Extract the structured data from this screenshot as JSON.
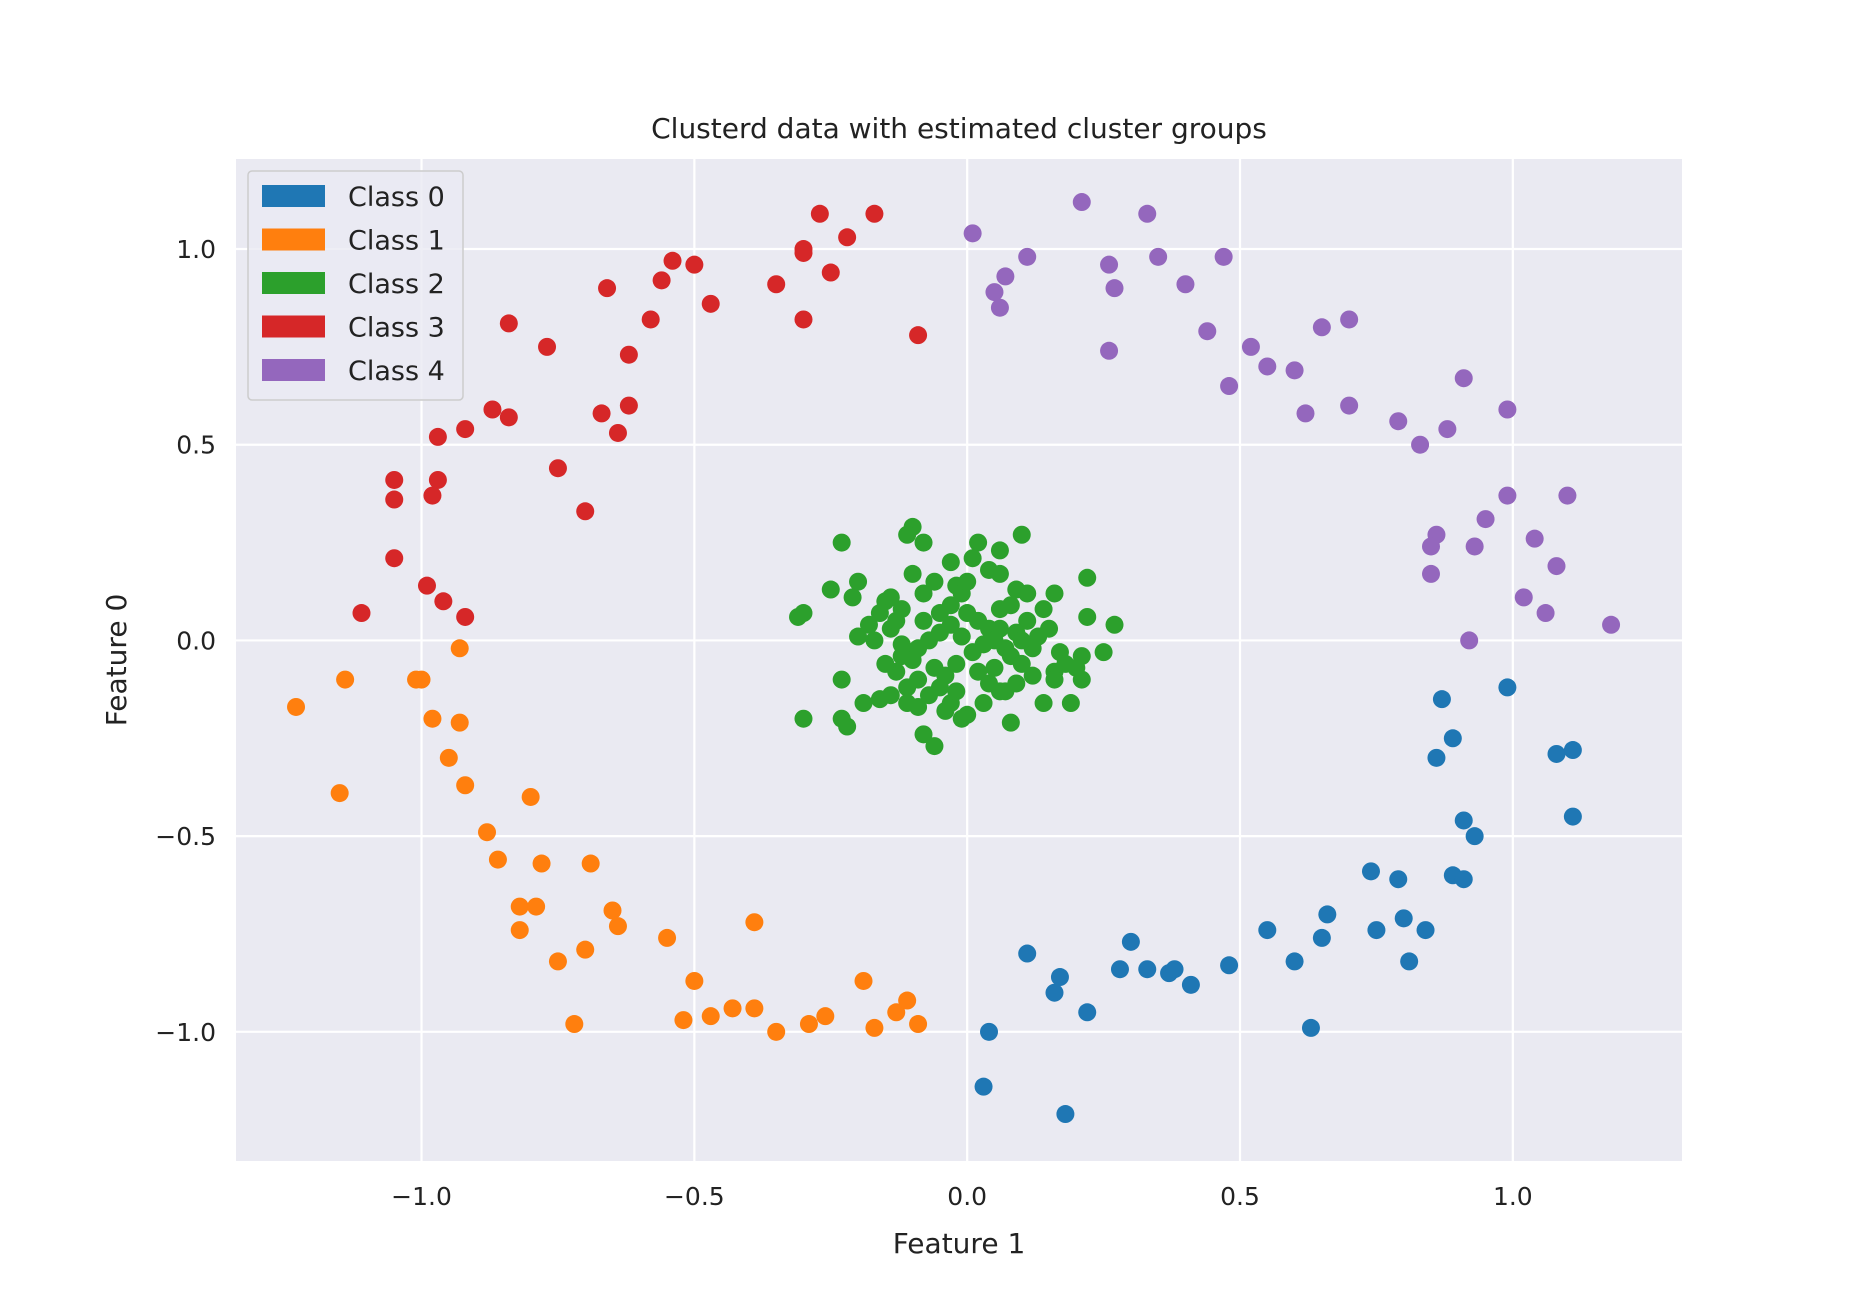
{
  "chart_data": {
    "type": "scatter",
    "title": "Clusterd data with estimated cluster groups",
    "xlabel": "Feature 1",
    "ylabel": "Feature 0",
    "xlim": [
      -1.34,
      1.31
    ],
    "ylim": [
      -1.33,
      1.23
    ],
    "x_ticks": [
      -1.0,
      -0.5,
      0.0,
      0.5,
      1.0
    ],
    "y_ticks": [
      -1.0,
      -0.5,
      0.0,
      0.5,
      1.0
    ],
    "x_tick_labels": [
      "−1.0",
      "−0.5",
      "0.0",
      "0.5",
      "1.0"
    ],
    "y_tick_labels": [
      "−1.0",
      "−0.5",
      "0.0",
      "0.5",
      "1.0"
    ],
    "grid": true,
    "background": "#eaeaf2",
    "legend_position": "top-left",
    "series": [
      {
        "name": "Class 0",
        "color": "#1f77b4",
        "points": [
          [
            0.99,
            -0.12
          ],
          [
            0.87,
            -0.15
          ],
          [
            1.08,
            -0.29
          ],
          [
            1.11,
            -0.28
          ],
          [
            0.89,
            -0.25
          ],
          [
            0.86,
            -0.3
          ],
          [
            0.91,
            -0.46
          ],
          [
            0.93,
            -0.5
          ],
          [
            1.11,
            -0.45
          ],
          [
            0.89,
            -0.6
          ],
          [
            0.91,
            -0.61
          ],
          [
            0.74,
            -0.59
          ],
          [
            0.79,
            -0.61
          ],
          [
            0.66,
            -0.7
          ],
          [
            0.65,
            -0.76
          ],
          [
            0.55,
            -0.74
          ],
          [
            0.75,
            -0.74
          ],
          [
            0.8,
            -0.71
          ],
          [
            0.84,
            -0.74
          ],
          [
            0.81,
            -0.82
          ],
          [
            0.6,
            -0.82
          ],
          [
            0.48,
            -0.83
          ],
          [
            0.3,
            -0.77
          ],
          [
            0.28,
            -0.84
          ],
          [
            0.33,
            -0.84
          ],
          [
            0.37,
            -0.85
          ],
          [
            0.38,
            -0.84
          ],
          [
            0.41,
            -0.88
          ],
          [
            0.11,
            -0.8
          ],
          [
            0.17,
            -0.86
          ],
          [
            0.16,
            -0.9
          ],
          [
            0.22,
            -0.95
          ],
          [
            0.04,
            -1.0
          ],
          [
            0.03,
            -1.14
          ],
          [
            0.18,
            -1.21
          ],
          [
            0.63,
            -0.99
          ]
        ]
      },
      {
        "name": "Class 1",
        "color": "#ff7f0e",
        "points": [
          [
            -1.23,
            -0.17
          ],
          [
            -1.14,
            -0.1
          ],
          [
            -1.0,
            -0.1
          ],
          [
            -1.01,
            -0.1
          ],
          [
            -0.98,
            -0.2
          ],
          [
            -0.93,
            -0.02
          ],
          [
            -0.93,
            -0.21
          ],
          [
            -0.95,
            -0.3
          ],
          [
            -0.92,
            -0.37
          ],
          [
            -1.15,
            -0.39
          ],
          [
            -0.8,
            -0.4
          ],
          [
            -0.88,
            -0.49
          ],
          [
            -0.86,
            -0.56
          ],
          [
            -0.78,
            -0.57
          ],
          [
            -0.69,
            -0.57
          ],
          [
            -0.82,
            -0.68
          ],
          [
            -0.79,
            -0.68
          ],
          [
            -0.82,
            -0.74
          ],
          [
            -0.65,
            -0.69
          ],
          [
            -0.64,
            -0.73
          ],
          [
            -0.75,
            -0.82
          ],
          [
            -0.7,
            -0.79
          ],
          [
            -0.55,
            -0.76
          ],
          [
            -0.39,
            -0.72
          ],
          [
            -0.5,
            -0.87
          ],
          [
            -0.52,
            -0.97
          ],
          [
            -0.47,
            -0.96
          ],
          [
            -0.43,
            -0.94
          ],
          [
            -0.39,
            -0.94
          ],
          [
            -0.35,
            -1.0
          ],
          [
            -0.29,
            -0.98
          ],
          [
            -0.26,
            -0.96
          ],
          [
            -0.19,
            -0.87
          ],
          [
            -0.17,
            -0.99
          ],
          [
            -0.13,
            -0.95
          ],
          [
            -0.11,
            -0.92
          ],
          [
            -0.09,
            -0.98
          ],
          [
            -0.72,
            -0.98
          ]
        ]
      },
      {
        "name": "Class 2",
        "color": "#2ca02c",
        "points": [
          [
            -0.1,
            0.29
          ],
          [
            -0.11,
            0.27
          ],
          [
            -0.08,
            0.25
          ],
          [
            0.02,
            0.25
          ],
          [
            0.06,
            0.23
          ],
          [
            0.1,
            0.27
          ],
          [
            -0.23,
            0.25
          ],
          [
            -0.03,
            0.2
          ],
          [
            0.01,
            0.21
          ],
          [
            -0.2,
            0.15
          ],
          [
            -0.21,
            0.11
          ],
          [
            -0.25,
            0.13
          ],
          [
            -0.31,
            0.06
          ],
          [
            -0.3,
            0.07
          ],
          [
            -0.15,
            0.1
          ],
          [
            -0.14,
            0.11
          ],
          [
            -0.12,
            0.08
          ],
          [
            -0.1,
            0.17
          ],
          [
            -0.06,
            0.15
          ],
          [
            -0.02,
            0.14
          ],
          [
            0.04,
            0.18
          ],
          [
            0.06,
            0.17
          ],
          [
            0.09,
            0.13
          ],
          [
            0.11,
            0.12
          ],
          [
            0.16,
            0.12
          ],
          [
            0.22,
            0.16
          ],
          [
            0.14,
            0.08
          ],
          [
            0.22,
            0.06
          ],
          [
            0.27,
            0.04
          ],
          [
            0.25,
            -0.03
          ],
          [
            0.21,
            -0.04
          ],
          [
            0.2,
            -0.07
          ],
          [
            0.21,
            -0.1
          ],
          [
            0.19,
            -0.16
          ],
          [
            0.16,
            -0.08
          ],
          [
            0.16,
            -0.1
          ],
          [
            0.14,
            -0.16
          ],
          [
            0.08,
            -0.21
          ],
          [
            0.06,
            -0.13
          ],
          [
            0.03,
            -0.16
          ],
          [
            0.0,
            -0.19
          ],
          [
            -0.01,
            -0.2
          ],
          [
            -0.03,
            -0.16
          ],
          [
            -0.06,
            -0.27
          ],
          [
            -0.08,
            -0.24
          ],
          [
            -0.04,
            -0.18
          ],
          [
            -0.09,
            -0.17
          ],
          [
            -0.11,
            -0.16
          ],
          [
            -0.14,
            -0.14
          ],
          [
            -0.16,
            -0.15
          ],
          [
            -0.19,
            -0.16
          ],
          [
            -0.23,
            -0.2
          ],
          [
            -0.22,
            -0.22
          ],
          [
            -0.3,
            -0.2
          ],
          [
            -0.23,
            -0.1
          ],
          [
            -0.2,
            0.01
          ],
          [
            -0.17,
            0.0
          ],
          [
            -0.14,
            0.03
          ],
          [
            -0.12,
            -0.01
          ],
          [
            -0.1,
            -0.03
          ],
          [
            -0.08,
            0.05
          ],
          [
            -0.05,
            0.07
          ],
          [
            -0.03,
            0.09
          ],
          [
            -0.01,
            0.12
          ],
          [
            0.0,
            0.07
          ],
          [
            0.02,
            0.05
          ],
          [
            0.04,
            0.03
          ],
          [
            0.05,
            0.0
          ],
          [
            0.07,
            -0.02
          ],
          [
            0.08,
            -0.04
          ],
          [
            0.1,
            -0.06
          ],
          [
            0.12,
            -0.02
          ],
          [
            0.13,
            0.01
          ],
          [
            0.15,
            0.03
          ],
          [
            0.11,
            0.05
          ],
          [
            0.09,
            0.02
          ],
          [
            0.06,
            0.03
          ],
          [
            0.03,
            -0.01
          ],
          [
            0.01,
            -0.03
          ],
          [
            -0.02,
            -0.06
          ],
          [
            -0.04,
            -0.09
          ],
          [
            -0.06,
            -0.07
          ],
          [
            -0.09,
            -0.1
          ],
          [
            -0.11,
            -0.12
          ],
          [
            -0.13,
            -0.08
          ],
          [
            -0.15,
            -0.06
          ],
          [
            -0.12,
            -0.04
          ],
          [
            -0.09,
            -0.02
          ],
          [
            -0.07,
            0.0
          ],
          [
            -0.05,
            0.02
          ],
          [
            -0.03,
            0.04
          ],
          [
            -0.01,
            0.01
          ],
          [
            0.02,
            -0.08
          ],
          [
            0.04,
            -0.11
          ],
          [
            0.07,
            -0.13
          ],
          [
            0.09,
            -0.11
          ],
          [
            0.12,
            -0.09
          ],
          [
            -0.16,
            0.07
          ],
          [
            -0.18,
            0.04
          ],
          [
            -0.08,
            0.12
          ],
          [
            0.0,
            0.15
          ],
          [
            0.08,
            0.09
          ],
          [
            0.17,
            -0.03
          ],
          [
            0.18,
            -0.06
          ],
          [
            -0.02,
            -0.13
          ],
          [
            -0.1,
            -0.05
          ],
          [
            -0.05,
            -0.12
          ],
          [
            0.05,
            -0.07
          ],
          [
            -0.13,
            0.05
          ],
          [
            0.06,
            0.08
          ],
          [
            -0.07,
            -0.14
          ],
          [
            0.1,
            0.0
          ]
        ]
      },
      {
        "name": "Class 3",
        "color": "#d62728",
        "points": [
          [
            -0.17,
            1.09
          ],
          [
            -0.27,
            1.09
          ],
          [
            -0.22,
            1.03
          ],
          [
            -0.3,
            1.0
          ],
          [
            -0.3,
            0.99
          ],
          [
            -0.25,
            0.94
          ],
          [
            -0.35,
            0.91
          ],
          [
            -0.3,
            0.82
          ],
          [
            -0.09,
            0.78
          ],
          [
            -0.54,
            0.97
          ],
          [
            -0.5,
            0.96
          ],
          [
            -0.56,
            0.92
          ],
          [
            -0.66,
            0.9
          ],
          [
            -0.47,
            0.86
          ],
          [
            -0.58,
            0.82
          ],
          [
            -0.62,
            0.73
          ],
          [
            -0.84,
            0.81
          ],
          [
            -0.77,
            0.75
          ],
          [
            -0.62,
            0.6
          ],
          [
            -0.67,
            0.58
          ],
          [
            -0.64,
            0.53
          ],
          [
            -0.87,
            0.59
          ],
          [
            -0.84,
            0.57
          ],
          [
            -0.92,
            0.54
          ],
          [
            -0.97,
            0.52
          ],
          [
            -0.75,
            0.44
          ],
          [
            -0.97,
            0.41
          ],
          [
            -1.05,
            0.41
          ],
          [
            -0.98,
            0.37
          ],
          [
            -1.05,
            0.36
          ],
          [
            -0.7,
            0.33
          ],
          [
            -1.05,
            0.21
          ],
          [
            -0.99,
            0.14
          ],
          [
            -0.96,
            0.1
          ],
          [
            -0.92,
            0.06
          ],
          [
            -1.11,
            0.07
          ]
        ]
      },
      {
        "name": "Class 4",
        "color": "#9467bd",
        "points": [
          [
            0.21,
            1.12
          ],
          [
            0.33,
            1.09
          ],
          [
            0.01,
            1.04
          ],
          [
            0.11,
            0.98
          ],
          [
            0.26,
            0.96
          ],
          [
            0.35,
            0.98
          ],
          [
            0.47,
            0.98
          ],
          [
            0.07,
            0.93
          ],
          [
            0.05,
            0.89
          ],
          [
            0.27,
            0.9
          ],
          [
            0.4,
            0.91
          ],
          [
            0.06,
            0.85
          ],
          [
            0.44,
            0.79
          ],
          [
            0.65,
            0.8
          ],
          [
            0.7,
            0.82
          ],
          [
            0.26,
            0.74
          ],
          [
            0.52,
            0.75
          ],
          [
            0.55,
            0.7
          ],
          [
            0.6,
            0.69
          ],
          [
            0.48,
            0.65
          ],
          [
            0.62,
            0.58
          ],
          [
            0.7,
            0.6
          ],
          [
            0.79,
            0.56
          ],
          [
            0.83,
            0.5
          ],
          [
            0.88,
            0.54
          ],
          [
            0.91,
            0.67
          ],
          [
            0.99,
            0.59
          ],
          [
            0.99,
            0.37
          ],
          [
            1.1,
            0.37
          ],
          [
            0.95,
            0.31
          ],
          [
            0.86,
            0.27
          ],
          [
            0.85,
            0.24
          ],
          [
            0.93,
            0.24
          ],
          [
            1.04,
            0.26
          ],
          [
            1.08,
            0.19
          ],
          [
            0.85,
            0.17
          ],
          [
            1.02,
            0.11
          ],
          [
            1.06,
            0.07
          ],
          [
            1.18,
            0.04
          ],
          [
            0.92,
            0.0
          ]
        ]
      }
    ]
  }
}
